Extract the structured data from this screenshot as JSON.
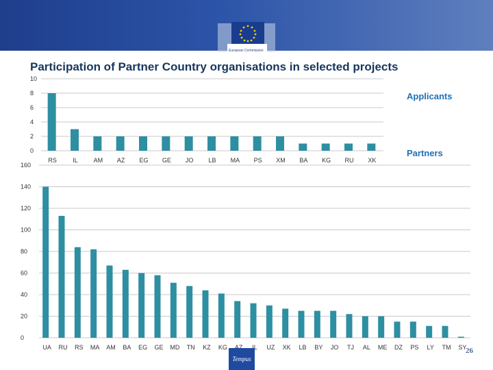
{
  "header": {
    "logo_text": "European Commission",
    "colors": {
      "band": "#2c54a8",
      "bar": "#2e8fa3",
      "grid": "#c9c9c9"
    }
  },
  "title": "Participation of Partner Country organisations in selected projects",
  "page_number": "26",
  "tempus_logo": "Tempus",
  "chart_data": [
    {
      "type": "bar",
      "title": "",
      "series_label": "Applicants",
      "categories": [
        "RS",
        "IL",
        "AM",
        "AZ",
        "EG",
        "GE",
        "JO",
        "LB",
        "MA",
        "PS",
        "XM",
        "BA",
        "KG",
        "RU",
        "XK"
      ],
      "values": [
        8,
        3,
        2,
        2,
        2,
        2,
        2,
        2,
        2,
        2,
        2,
        1,
        1,
        1,
        1
      ],
      "ylim": [
        0,
        10
      ],
      "yticks": [
        "0",
        "2",
        "4",
        "6",
        "8",
        "10"
      ],
      "grid": true
    },
    {
      "type": "bar",
      "title": "",
      "series_label": "Partners",
      "categories": [
        "UA",
        "RU",
        "RS",
        "MA",
        "AM",
        "BA",
        "EG",
        "GE",
        "MD",
        "TN",
        "KZ",
        "KG",
        "AZ",
        "IL",
        "UZ",
        "XK",
        "LB",
        "BY",
        "JO",
        "TJ",
        "AL",
        "ME",
        "DZ",
        "PS",
        "LY",
        "TM",
        "SY"
      ],
      "values": [
        140,
        113,
        84,
        82,
        67,
        63,
        60,
        58,
        51,
        48,
        44,
        41,
        34,
        32,
        30,
        27,
        25,
        25,
        25,
        22,
        20,
        20,
        15,
        15,
        11,
        11,
        1
      ],
      "ylim": [
        0,
        160
      ],
      "yticks": [
        "0",
        "20",
        "40",
        "60",
        "80",
        "100",
        "120",
        "140",
        "160"
      ],
      "grid": true
    }
  ]
}
